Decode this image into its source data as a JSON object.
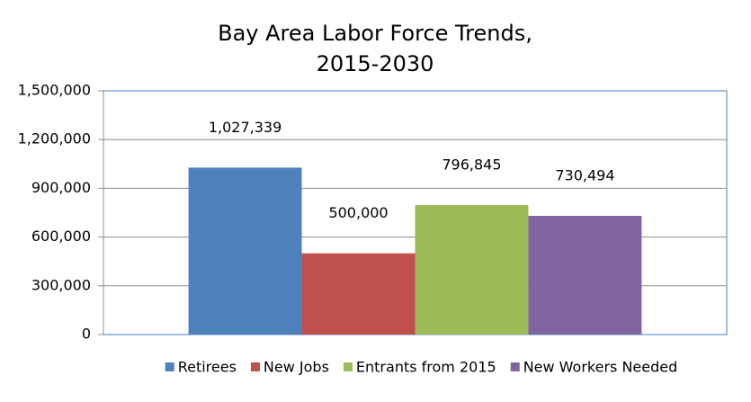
{
  "chart_data": {
    "type": "bar",
    "title": "Bay Area Labor Force Trends, 2015-2030",
    "categories": [
      null
    ],
    "series": [
      {
        "name": "Retirees",
        "color": "#4f81bd",
        "values": [
          1027339
        ],
        "value_labels": [
          "1,027,339"
        ]
      },
      {
        "name": "New Jobs",
        "color": "#c0504d",
        "values": [
          500000
        ],
        "value_labels": [
          "500,000"
        ]
      },
      {
        "name": "Entrants from 2015",
        "color": "#9bbb59",
        "values": [
          796845
        ],
        "value_labels": [
          "796,845"
        ]
      },
      {
        "name": "New Workers Needed",
        "color": "#8064a2",
        "values": [
          730494
        ],
        "value_labels": [
          "730,494"
        ]
      }
    ],
    "ylim": [
      0,
      1500000
    ],
    "yticks": [
      0,
      {
        "value": 300000,
        "label": "300,000"
      },
      {
        "value": 600000,
        "label": "600,000"
      },
      {
        "value": 900000,
        "label": "900,000"
      },
      {
        "value": 1200000,
        "label": "1,200,000"
      },
      {
        "value": 1500000,
        "label": "1,500,000"
      }
    ],
    "grid": true,
    "legend": "bottom"
  }
}
